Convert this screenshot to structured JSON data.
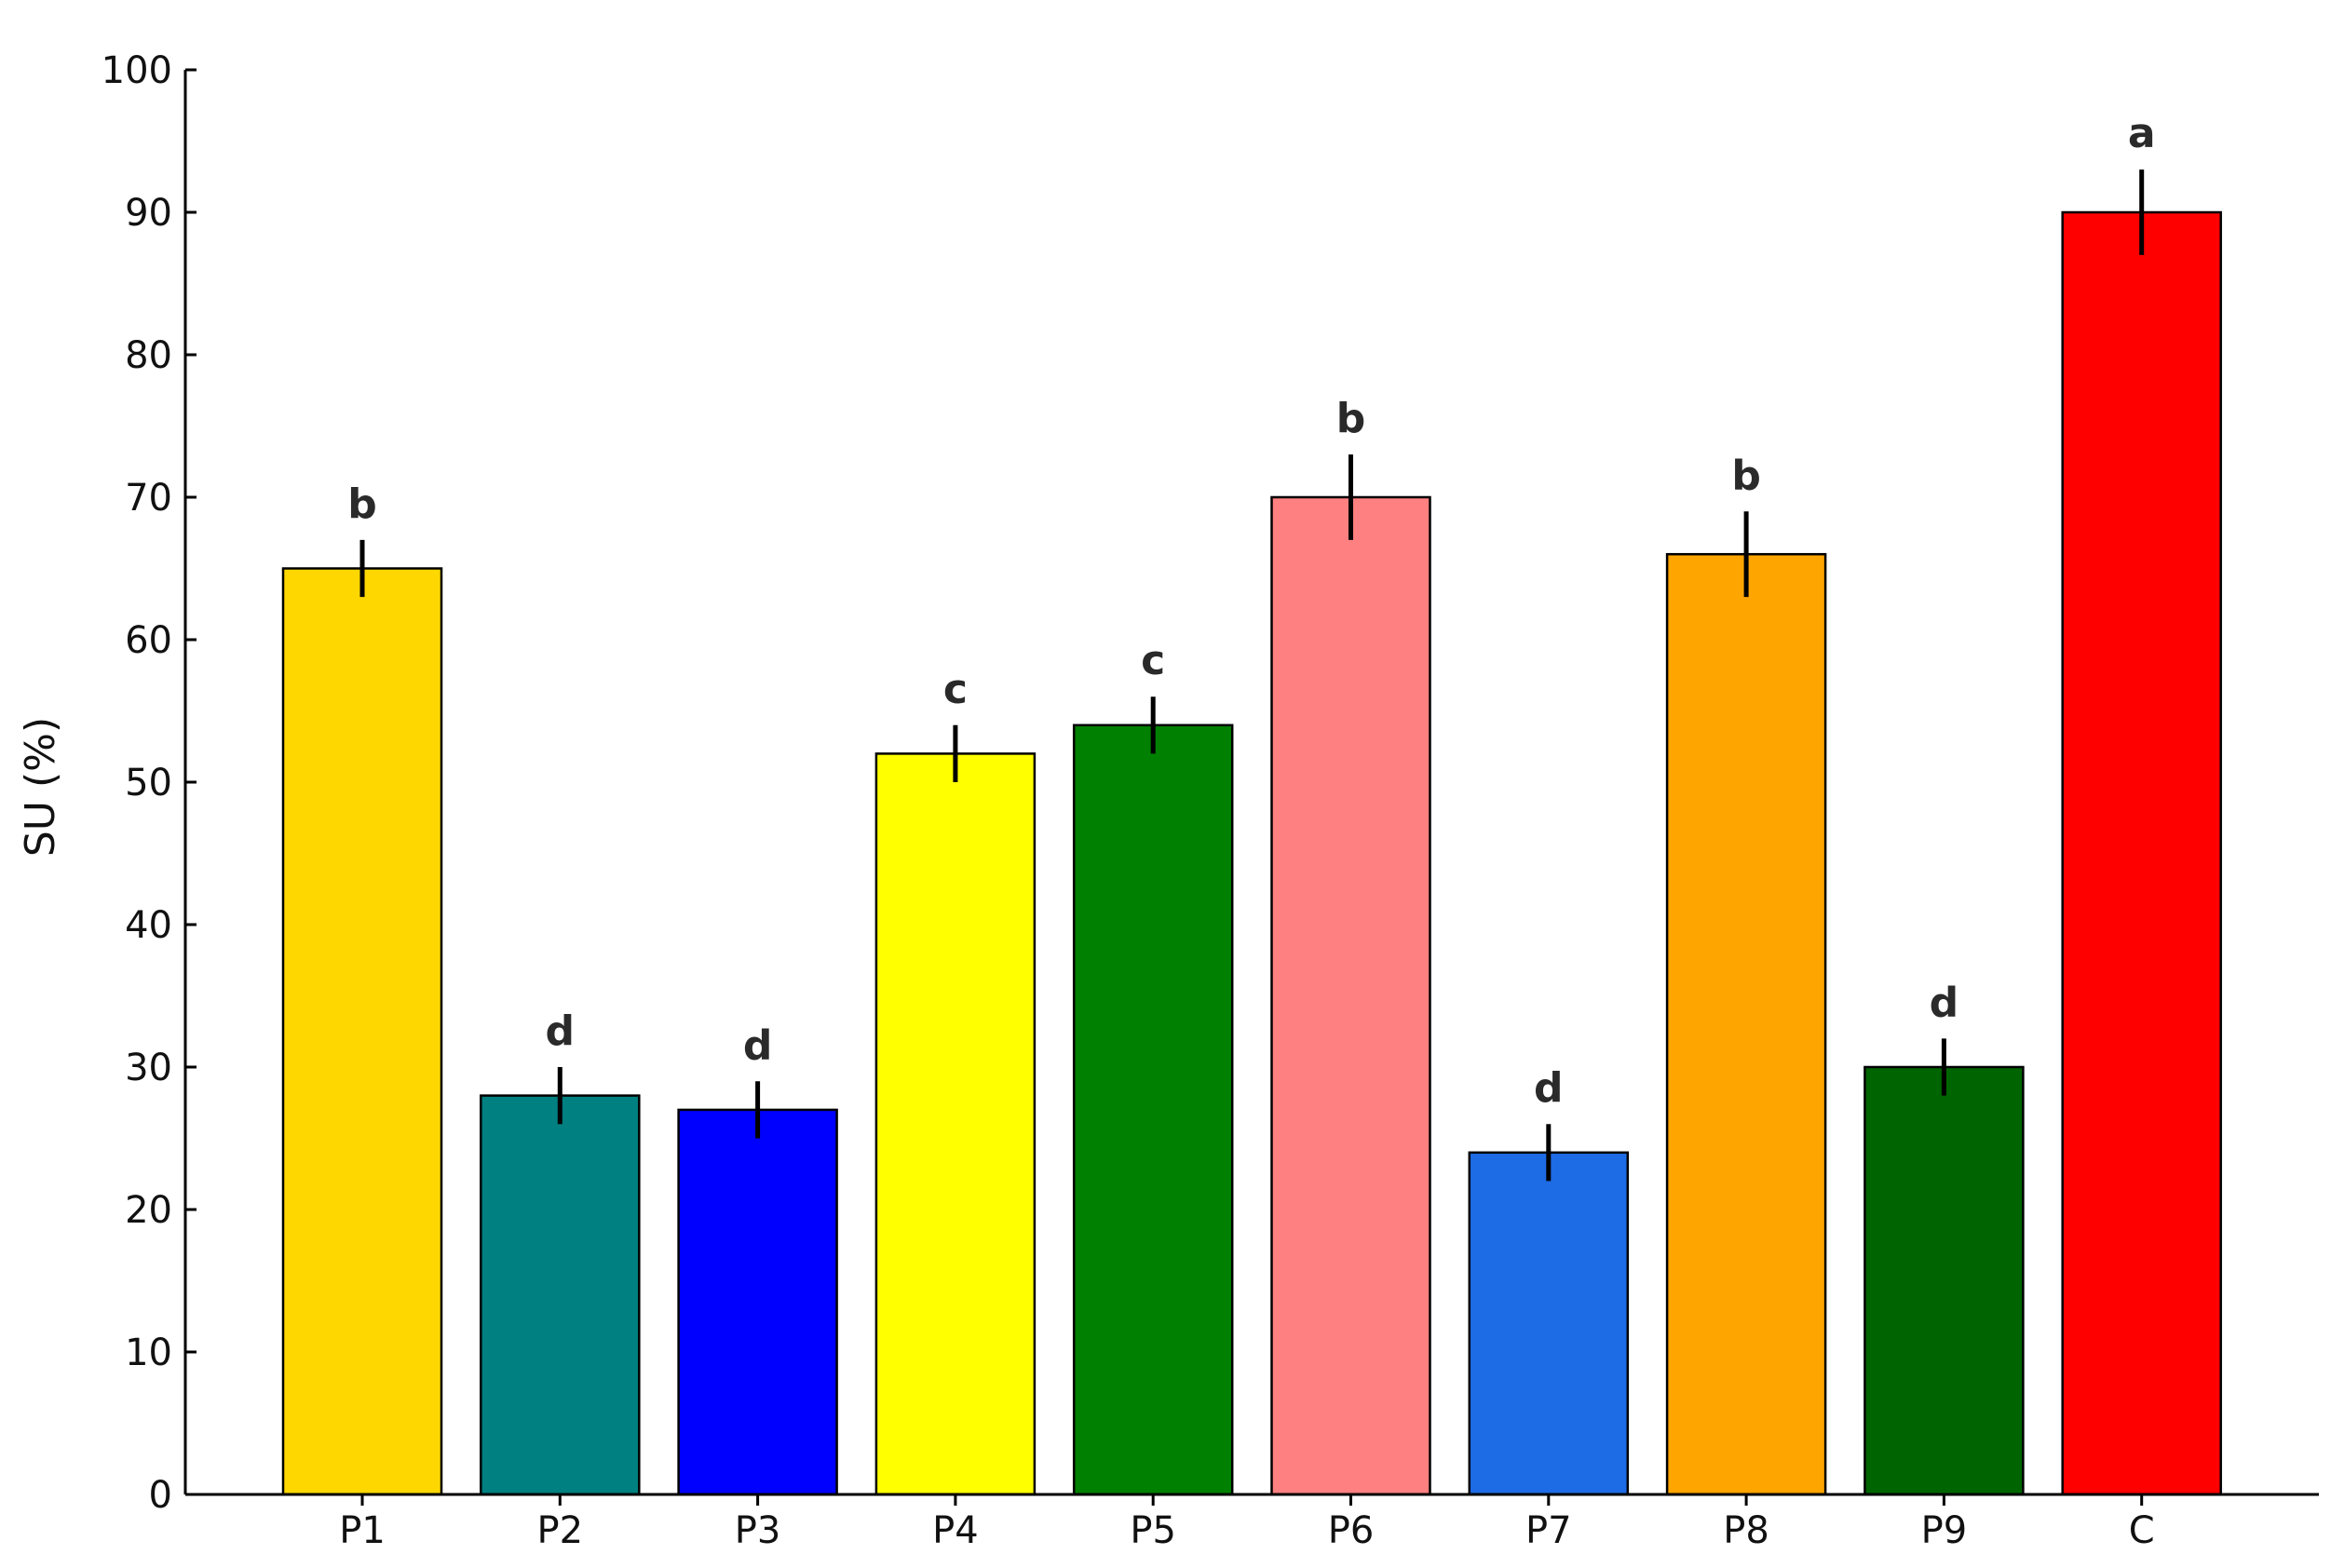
{
  "chart_data": {
    "type": "bar",
    "title": "",
    "xlabel": "",
    "ylabel": "SU (%)",
    "ylim": [
      0,
      100
    ],
    "yticks": [
      0,
      10,
      20,
      30,
      40,
      50,
      60,
      70,
      80,
      90,
      100
    ],
    "categories": [
      "P1",
      "P2",
      "P3",
      "P4",
      "P5",
      "P6",
      "P7",
      "P8",
      "P9",
      "C"
    ],
    "values": [
      65,
      28,
      27,
      52,
      54,
      70,
      24,
      66,
      30,
      90
    ],
    "errors": [
      2,
      2,
      2,
      2,
      2,
      3,
      2,
      3,
      2,
      3
    ],
    "significance_letters": [
      "b",
      "d",
      "d",
      "c",
      "c",
      "b",
      "d",
      "b",
      "d",
      "a"
    ],
    "bar_colors": [
      "#FFD700",
      "#008080",
      "#0000FF",
      "#FFFF00",
      "#008000",
      "#FF8080",
      "#1E6BE6",
      "#FFA500",
      "#006400",
      "#FF0000"
    ],
    "grid": false,
    "legend": "none"
  }
}
